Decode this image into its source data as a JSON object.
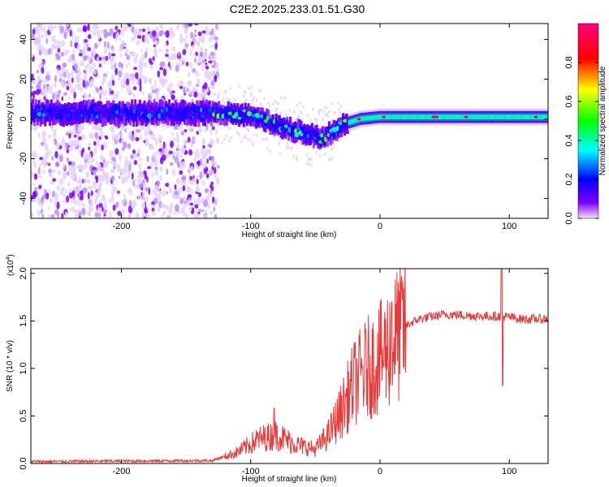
{
  "title": "C2E2.2025.233.01.51.G30",
  "chart_data": [
    {
      "type": "heatmap",
      "name": "spectrogram",
      "xlabel": "Height of straight line (km)",
      "ylabel": "Frequency (Hz)",
      "xlim": [
        -270,
        130
      ],
      "ylim": [
        -50,
        48
      ],
      "xticks": [
        -200,
        -100,
        0,
        100
      ],
      "xtick_labels": [
        "-200",
        "-100",
        "0",
        "100"
      ],
      "yticks": [
        -40,
        -20,
        0,
        20,
        40
      ],
      "ytick_labels": [
        "-40",
        "-20",
        "0",
        "20",
        "40"
      ],
      "colorbar": {
        "label": "Normalized spectral amplitude",
        "range": [
          0,
          1
        ],
        "ticks": [
          0,
          0.2,
          0.4,
          0.6,
          0.8
        ],
        "tick_labels": [
          "0.0",
          "0.2",
          "0.4",
          "0.6",
          "0.8"
        ],
        "colormap": [
          "#ffffff",
          "#7d00ff",
          "#0000ff",
          "#00ffff",
          "#00ff00",
          "#ffff00",
          "#ff0000",
          "#ff0080"
        ]
      },
      "ridge_center_hz": [
        {
          "x": -270,
          "y": 3
        },
        {
          "x": -130,
          "y": 3
        },
        {
          "x": -100,
          "y": 2
        },
        {
          "x": -80,
          "y": -3
        },
        {
          "x": -60,
          "y": -7
        },
        {
          "x": -45,
          "y": -10
        },
        {
          "x": -30,
          "y": -3
        },
        {
          "x": -15,
          "y": 0
        },
        {
          "x": 0,
          "y": 1
        },
        {
          "x": 50,
          "y": 1
        },
        {
          "x": 130,
          "y": 1
        }
      ]
    },
    {
      "type": "line",
      "name": "snr",
      "xlabel": "Height of straight line (km)",
      "ylabel": "SNR (10 * v/v)",
      "multiplier_label": "(x10",
      "multiplier_exp": "4",
      "multiplier_close": ")",
      "xlim": [
        -270,
        130
      ],
      "ylim": [
        0,
        2.05
      ],
      "xticks": [
        -200,
        -100,
        0,
        100
      ],
      "xtick_labels": [
        "-200",
        "-100",
        "0",
        "100"
      ],
      "yticks": [
        0,
        0.5,
        1.0,
        1.5,
        2.0
      ],
      "ytick_labels": [
        "0.0",
        "0.5",
        "1.0",
        "1.5",
        "2.0"
      ],
      "color": "#e83a3a",
      "series_envelope": [
        {
          "x": -270,
          "y": 0.02
        },
        {
          "x": -130,
          "y": 0.03
        },
        {
          "x": -110,
          "y": 0.12
        },
        {
          "x": -95,
          "y": 0.25
        },
        {
          "x": -80,
          "y": 0.3
        },
        {
          "x": -65,
          "y": 0.2
        },
        {
          "x": -50,
          "y": 0.15
        },
        {
          "x": -40,
          "y": 0.3
        },
        {
          "x": -30,
          "y": 0.55
        },
        {
          "x": -20,
          "y": 0.85
        },
        {
          "x": -10,
          "y": 1.0
        },
        {
          "x": 0,
          "y": 1.1
        },
        {
          "x": 10,
          "y": 1.3
        },
        {
          "x": 20,
          "y": 1.45
        },
        {
          "x": 30,
          "y": 1.52
        },
        {
          "x": 50,
          "y": 1.57
        },
        {
          "x": 80,
          "y": 1.55
        },
        {
          "x": 95,
          "y": 1.55
        },
        {
          "x": 110,
          "y": 1.52
        },
        {
          "x": 130,
          "y": 1.52
        }
      ],
      "spikes": [
        {
          "x": 9,
          "y": 1.7
        },
        {
          "x": 94,
          "y": 2.05
        },
        {
          "x": 95,
          "y": 0.82
        },
        {
          "x": -82,
          "y": 0.58
        }
      ]
    }
  ]
}
